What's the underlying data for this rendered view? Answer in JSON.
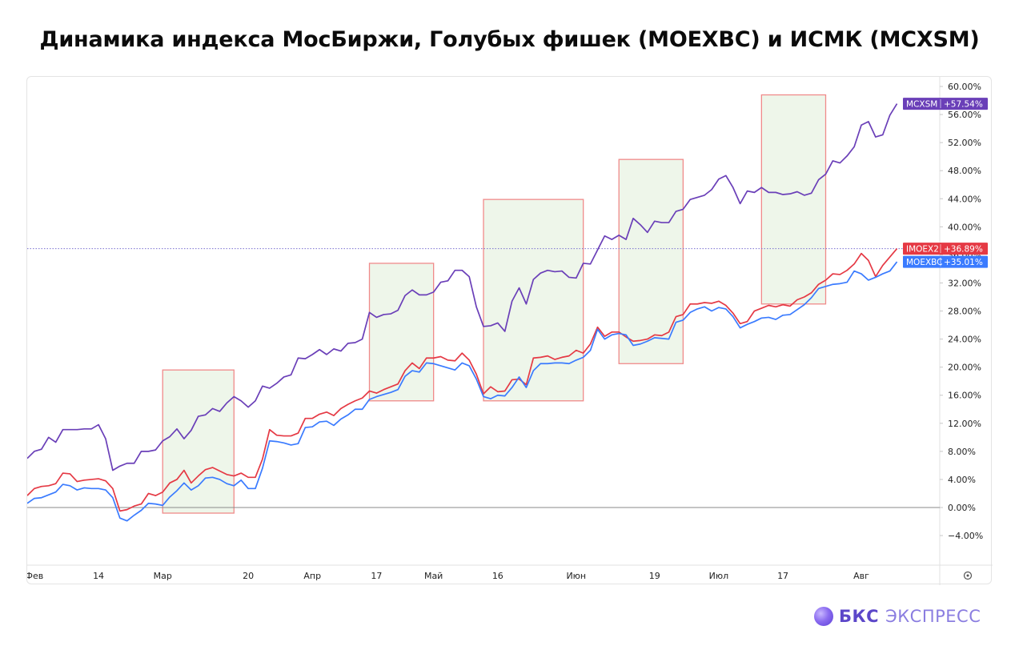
{
  "page": {
    "title": "Динамика индекса МосБиржи, Голубых фишек (MOEXBC) и ИСМК (MCXSM)"
  },
  "brand": {
    "name": "БКС",
    "sub": "ЭКСПРЕСС"
  },
  "chart_data": {
    "type": "line",
    "title": "Динамика индекса МосБиржи, Голубых фишек (MOEXBC) и ИСМК (MCXSM)",
    "xlabel": "",
    "ylabel": "",
    "ylim": [
      -8,
      61
    ],
    "y_ticks": [
      60,
      56,
      52,
      48,
      44,
      40,
      36,
      32,
      28,
      24,
      20,
      16,
      12,
      8,
      4,
      0,
      -4
    ],
    "y_tick_labels": [
      "60.00%",
      "56.00%",
      "52.00%",
      "48.00%",
      "44.00%",
      "40.00%",
      "36.00%",
      "32.00%",
      "28.00%",
      "24.00%",
      "20.00%",
      "16.00%",
      "12.00%",
      "8.00%",
      "4.00%",
      "0.00%",
      "−4.00%"
    ],
    "xlim": [
      0,
      128
    ],
    "x_ticks": [
      {
        "label": "Фев",
        "x": 1
      },
      {
        "label": "14",
        "x": 10
      },
      {
        "label": "Мар",
        "x": 19
      },
      {
        "label": "20",
        "x": 31
      },
      {
        "label": "Апр",
        "x": 40
      },
      {
        "label": "17",
        "x": 49
      },
      {
        "label": "Май",
        "x": 57
      },
      {
        "label": "16",
        "x": 66
      },
      {
        "label": "Июн",
        "x": 77
      },
      {
        "label": "19",
        "x": 88
      },
      {
        "label": "Июл",
        "x": 97
      },
      {
        "label": "17",
        "x": 106
      },
      {
        "label": "Авг",
        "x": 117
      }
    ],
    "grid": false,
    "zero_line": true,
    "highlight_boxes": [
      {
        "x0": 19,
        "x1": 29,
        "y0": -0.8,
        "y1": 19.6
      },
      {
        "x0": 48,
        "x1": 57,
        "y0": 15.2,
        "y1": 34.8
      },
      {
        "x0": 64,
        "x1": 78,
        "y0": 15.2,
        "y1": 43.9
      },
      {
        "x0": 83,
        "x1": 92,
        "y0": 20.5,
        "y1": 49.6
      },
      {
        "x0": 103,
        "x1": 112,
        "y0": 29.0,
        "y1": 58.8
      }
    ],
    "reference_line": {
      "y": 36.89
    },
    "series": [
      {
        "name": "MCXSM",
        "color": "#6a3fb8",
        "last_label": "+57.54%",
        "values": [
          7.0,
          8.0,
          8.3,
          10.0,
          9.3,
          11.1,
          11.1,
          11.1,
          11.2,
          11.2,
          11.8,
          9.8,
          5.3,
          5.9,
          6.3,
          6.3,
          8.0,
          8.0,
          8.2,
          9.5,
          10.1,
          11.2,
          9.8,
          11.0,
          13.0,
          13.2,
          14.1,
          13.7,
          14.9,
          15.8,
          15.2,
          14.3,
          15.2,
          17.3,
          17.0,
          17.7,
          18.6,
          18.9,
          21.3,
          21.2,
          21.8,
          22.5,
          21.8,
          22.6,
          22.3,
          23.4,
          23.5,
          24.0,
          27.8,
          27.1,
          27.5,
          27.6,
          28.1,
          30.2,
          31.0,
          30.3,
          30.3,
          30.7,
          32.1,
          32.3,
          33.8,
          33.8,
          32.9,
          28.6,
          25.8,
          25.9,
          26.3,
          25.1,
          29.4,
          31.3,
          29.0,
          32.5,
          33.4,
          33.8,
          33.6,
          33.7,
          32.8,
          32.7,
          34.8,
          34.7,
          36.7,
          38.7,
          38.2,
          38.8,
          38.2,
          41.2,
          40.3,
          39.2,
          40.8,
          40.6,
          40.6,
          42.2,
          42.5,
          43.9,
          44.2,
          44.5,
          45.3,
          46.8,
          47.3,
          45.6,
          43.3,
          45.1,
          44.9,
          45.6,
          44.9,
          44.9,
          44.6,
          44.7,
          45.0,
          44.5,
          44.8,
          46.7,
          47.5,
          49.4,
          49.1,
          50.1,
          51.4,
          54.5,
          55.0,
          52.8,
          53.1,
          55.9,
          57.54
        ]
      },
      {
        "name": "IMOEX2",
        "color": "#e53944",
        "last_label": "+36.89%",
        "values": [
          1.7,
          2.7,
          3.0,
          3.1,
          3.4,
          4.9,
          4.8,
          3.7,
          3.9,
          4.0,
          4.1,
          3.8,
          2.7,
          -0.5,
          -0.3,
          0.2,
          0.5,
          2.0,
          1.7,
          2.2,
          3.5,
          4.0,
          5.3,
          3.5,
          4.5,
          5.4,
          5.7,
          5.2,
          4.7,
          4.5,
          4.9,
          4.3,
          4.3,
          6.9,
          11.1,
          10.3,
          10.2,
          10.2,
          10.6,
          12.7,
          12.7,
          13.3,
          13.6,
          13.1,
          14.1,
          14.7,
          15.2,
          15.6,
          16.6,
          16.3,
          16.8,
          17.2,
          17.6,
          19.5,
          20.6,
          19.8,
          21.3,
          21.3,
          21.5,
          21.0,
          20.9,
          22.0,
          21.0,
          19.0,
          16.2,
          17.2,
          16.5,
          16.6,
          18.2,
          18.3,
          17.5,
          21.3,
          21.4,
          21.6,
          21.1,
          21.4,
          21.6,
          22.4,
          22.0,
          23.3,
          25.7,
          24.4,
          25.0,
          25.0,
          24.3,
          23.7,
          23.8,
          24.0,
          24.6,
          24.5,
          25.0,
          27.2,
          27.5,
          29.0,
          29.0,
          29.2,
          29.1,
          29.4,
          28.8,
          27.7,
          26.2,
          26.5,
          28.0,
          28.4,
          28.8,
          28.6,
          28.9,
          28.7,
          29.6,
          30.0,
          30.6,
          31.8,
          32.4,
          33.3,
          33.2,
          33.8,
          34.7,
          36.2,
          35.2,
          32.9,
          34.5,
          35.7,
          36.89
        ]
      },
      {
        "name": "MOEXBC",
        "color": "#3a7bff",
        "last_label": "+35.01%",
        "values": [
          0.6,
          1.3,
          1.4,
          1.8,
          2.2,
          3.3,
          3.1,
          2.5,
          2.8,
          2.7,
          2.7,
          2.5,
          1.4,
          -1.5,
          -1.9,
          -1.1,
          -0.4,
          0.6,
          0.5,
          0.3,
          1.5,
          2.4,
          3.5,
          2.5,
          3.1,
          4.2,
          4.3,
          4.0,
          3.4,
          3.1,
          3.9,
          2.7,
          2.7,
          5.6,
          9.5,
          9.4,
          9.2,
          8.9,
          9.1,
          11.4,
          11.5,
          12.2,
          12.3,
          11.7,
          12.6,
          13.2,
          14.0,
          14.0,
          15.4,
          15.8,
          16.1,
          16.4,
          16.8,
          18.7,
          19.5,
          19.3,
          20.6,
          20.5,
          20.2,
          19.9,
          19.6,
          20.6,
          20.2,
          18.3,
          15.8,
          15.5,
          16.0,
          15.9,
          17.1,
          18.6,
          17.1,
          19.5,
          20.5,
          20.5,
          20.6,
          20.6,
          20.5,
          21.0,
          21.4,
          22.4,
          25.4,
          24.0,
          24.6,
          24.8,
          24.6,
          23.1,
          23.3,
          23.7,
          24.2,
          24.1,
          24.0,
          26.4,
          26.7,
          27.8,
          28.3,
          28.6,
          28.0,
          28.5,
          28.3,
          27.2,
          25.6,
          26.1,
          26.5,
          27.0,
          27.1,
          26.8,
          27.4,
          27.5,
          28.2,
          28.9,
          29.9,
          31.2,
          31.5,
          31.8,
          31.9,
          32.1,
          33.7,
          33.3,
          32.4,
          32.8,
          33.3,
          33.7,
          35.01
        ]
      }
    ]
  }
}
